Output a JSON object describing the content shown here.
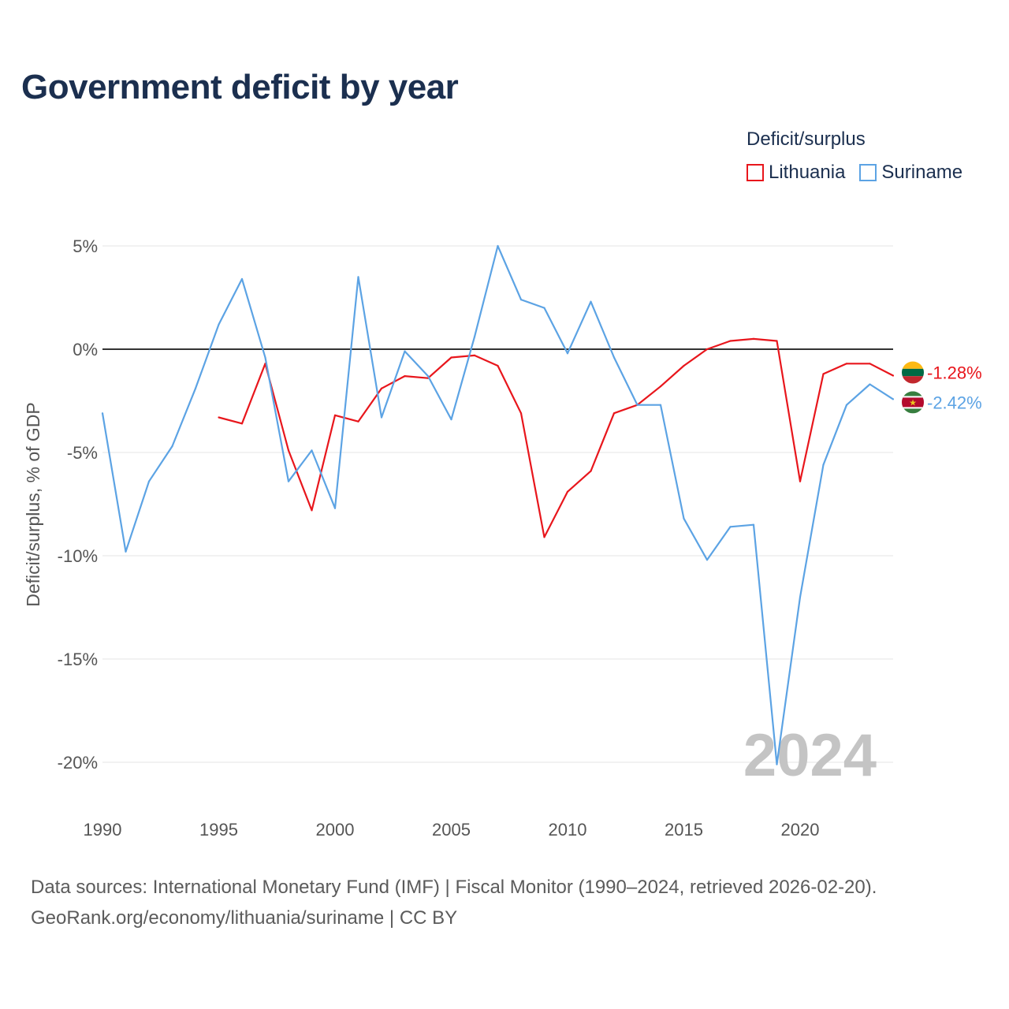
{
  "title": "Government deficit by year",
  "legend": {
    "title": "Deficit/surplus",
    "items": [
      {
        "name": "Lithuania",
        "color": "#e8161c"
      },
      {
        "name": "Suriname",
        "color": "#5ca3e4"
      }
    ]
  },
  "footer": {
    "line1": "Data sources: International Monetary Fund (IMF) | Fiscal Monitor (1990–2024, retrieved 2026-02-20).",
    "line2": "GeoRank.org/economy/lithuania/suriname | CC BY"
  },
  "chart_data": {
    "type": "line",
    "title": "Government deficit by year",
    "ylabel": "Deficit/surplus, % of GDP",
    "xlabel": "",
    "xlim": [
      1990,
      2024
    ],
    "ylim": [
      -20,
      5
    ],
    "x_ticks": [
      1990,
      1995,
      2000,
      2005,
      2010,
      2015,
      2020
    ],
    "y_ticks": [
      5,
      0,
      -5,
      -10,
      -15,
      -20
    ],
    "y_tick_labels": [
      "5%",
      "0%",
      "-5%",
      "-10%",
      "-15%",
      "-20%"
    ],
    "year_label": "2024",
    "series": [
      {
        "name": "Lithuania",
        "color": "#e8161c",
        "end_label": "-1.28%",
        "flag_colors": [
          "#fdb913",
          "#006a44",
          "#c1272d"
        ],
        "x": [
          1995,
          1996,
          1997,
          1998,
          1999,
          2000,
          2001,
          2002,
          2003,
          2004,
          2005,
          2006,
          2007,
          2008,
          2009,
          2010,
          2011,
          2012,
          2013,
          2014,
          2015,
          2016,
          2017,
          2018,
          2019,
          2020,
          2021,
          2022,
          2023,
          2024
        ],
        "values": [
          -3.3,
          -3.6,
          -0.7,
          -4.9,
          -7.8,
          -3.2,
          -3.5,
          -1.9,
          -1.3,
          -1.4,
          -0.4,
          -0.3,
          -0.8,
          -3.1,
          -9.1,
          -6.9,
          -5.9,
          -3.1,
          -2.7,
          -1.8,
          -0.8,
          0.0,
          0.4,
          0.5,
          0.4,
          -6.4,
          -1.2,
          -0.7,
          -0.7,
          -1.28
        ]
      },
      {
        "name": "Suriname",
        "color": "#5ca3e4",
        "end_label": "-2.42%",
        "flag_colors": [
          "#377e3f",
          "#ffffff",
          "#b40a2d",
          "#ecc81d"
        ],
        "x": [
          1990,
          1991,
          1992,
          1993,
          1994,
          1995,
          1996,
          1997,
          1998,
          1999,
          2000,
          2001,
          2002,
          2003,
          2004,
          2005,
          2006,
          2007,
          2008,
          2009,
          2010,
          2011,
          2012,
          2013,
          2014,
          2015,
          2016,
          2017,
          2018,
          2019,
          2020,
          2021,
          2022,
          2023,
          2024
        ],
        "values": [
          -3.1,
          -9.8,
          -6.4,
          -4.7,
          -1.9,
          1.2,
          3.4,
          -0.4,
          -6.4,
          -4.9,
          -7.7,
          3.5,
          -3.3,
          -0.1,
          -1.3,
          -3.4,
          0.6,
          5.0,
          2.4,
          2.0,
          -0.2,
          2.3,
          -0.4,
          -2.7,
          -2.7,
          -8.2,
          -10.2,
          -8.6,
          -8.5,
          -20.1,
          -12.0,
          -5.6,
          -2.7,
          -1.7,
          -2.42
        ]
      }
    ]
  }
}
